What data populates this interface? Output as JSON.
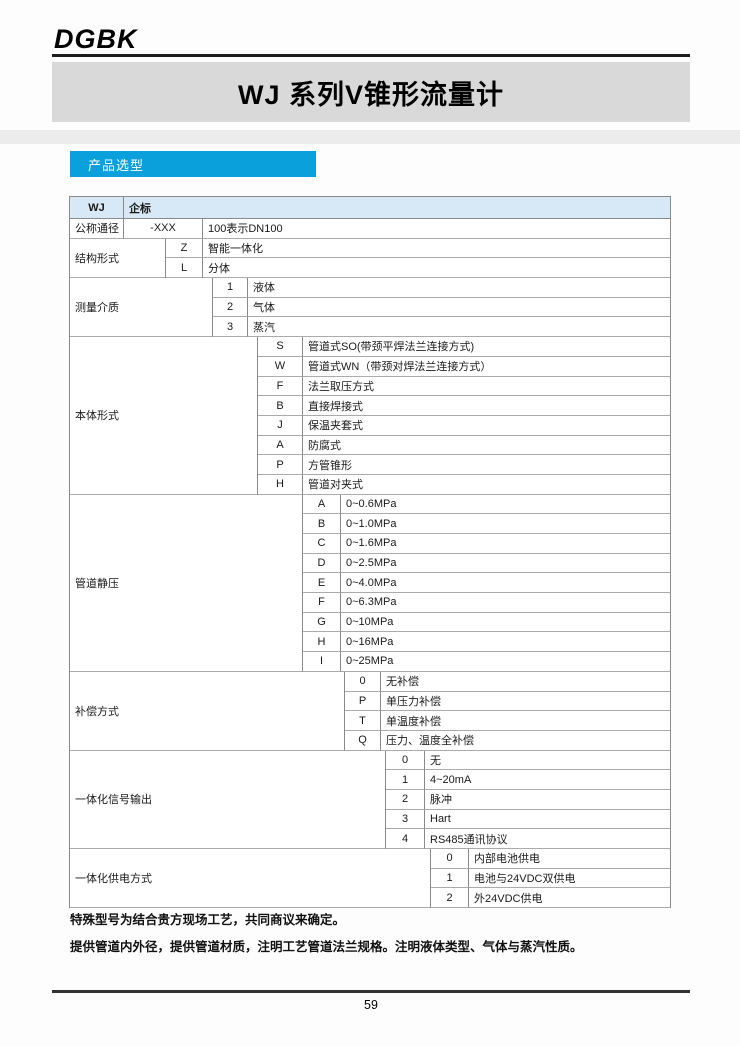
{
  "logo": "DGBK",
  "title": "WJ 系列V锥形流量计",
  "section_header": "产品选型",
  "table": {
    "header": {
      "code": "WJ",
      "desc": "企标"
    },
    "sections": [
      {
        "label": "公称通径",
        "level": 1,
        "options": [
          {
            "code": "-XXX",
            "desc": "100表示DN100"
          }
        ]
      },
      {
        "label": "结构形式",
        "level": 2,
        "options": [
          {
            "code": "Z",
            "desc": "智能一体化"
          },
          {
            "code": "L",
            "desc": "分体"
          }
        ]
      },
      {
        "label": "测量介质",
        "level": 3,
        "options": [
          {
            "code": "1",
            "desc": "液体"
          },
          {
            "code": "2",
            "desc": "气体"
          },
          {
            "code": "3",
            "desc": "蒸汽"
          }
        ]
      },
      {
        "label": "本体形式",
        "level": 4,
        "options": [
          {
            "code": "S",
            "desc": "管道式SO(带颈平焊法兰连接方式)"
          },
          {
            "code": "W",
            "desc": "管道式WN（带颈对焊法兰连接方式）"
          },
          {
            "code": "F",
            "desc": "法兰取压方式"
          },
          {
            "code": "B",
            "desc": "直接焊接式"
          },
          {
            "code": "J",
            "desc": "保温夹套式"
          },
          {
            "code": "A",
            "desc": "防腐式"
          },
          {
            "code": "P",
            "desc": "方管锥形"
          },
          {
            "code": "H",
            "desc": "管道对夹式"
          }
        ]
      },
      {
        "label": "管道静压",
        "level": 5,
        "options": [
          {
            "code": "A",
            "desc": "0~0.6MPa"
          },
          {
            "code": "B",
            "desc": "0~1.0MPa"
          },
          {
            "code": "C",
            "desc": "0~1.6MPa"
          },
          {
            "code": "D",
            "desc": "0~2.5MPa"
          },
          {
            "code": "E",
            "desc": "0~4.0MPa"
          },
          {
            "code": "F",
            "desc": "0~6.3MPa"
          },
          {
            "code": "G",
            "desc": "0~10MPa"
          },
          {
            "code": "H",
            "desc": "0~16MPa"
          },
          {
            "code": "I",
            "desc": "0~25MPa"
          }
        ]
      },
      {
        "label": "补偿方式",
        "level": 6,
        "options": [
          {
            "code": "0",
            "desc": "无补偿"
          },
          {
            "code": "P",
            "desc": "单压力补偿"
          },
          {
            "code": "T",
            "desc": "单温度补偿"
          },
          {
            "code": "Q",
            "desc": "压力、温度全补偿"
          }
        ]
      },
      {
        "label": "一体化信号输出",
        "level": 7,
        "options": [
          {
            "code": "0",
            "desc": "无"
          },
          {
            "code": "1",
            "desc": "4~20mA"
          },
          {
            "code": "2",
            "desc": "脉冲"
          },
          {
            "code": "3",
            "desc": "Hart"
          },
          {
            "code": "4",
            "desc": "RS485通讯协议"
          }
        ]
      },
      {
        "label": "一体化供电方式",
        "level": 8,
        "options": [
          {
            "code": "0",
            "desc": "内部电池供电"
          },
          {
            "code": "1",
            "desc": "电池与24VDC双供电"
          },
          {
            "code": "2",
            "desc": "外24VDC供电"
          }
        ]
      }
    ]
  },
  "notes": {
    "line1": "特殊型号为结合贵方现场工艺，共同商议来确定。",
    "line2": "提供管道内外径，提供管道材质，注明工艺管道法兰规格。注明液体类型、气体与蒸汽性质。"
  },
  "footer": {
    "page_number": "59"
  },
  "colors": {
    "section_bar_blue": "#0aa0dc",
    "title_banner_gray": "#d9d9d9",
    "table_header_blue": "#d7e9f7",
    "table_border_gray": "#8a8a8a"
  }
}
